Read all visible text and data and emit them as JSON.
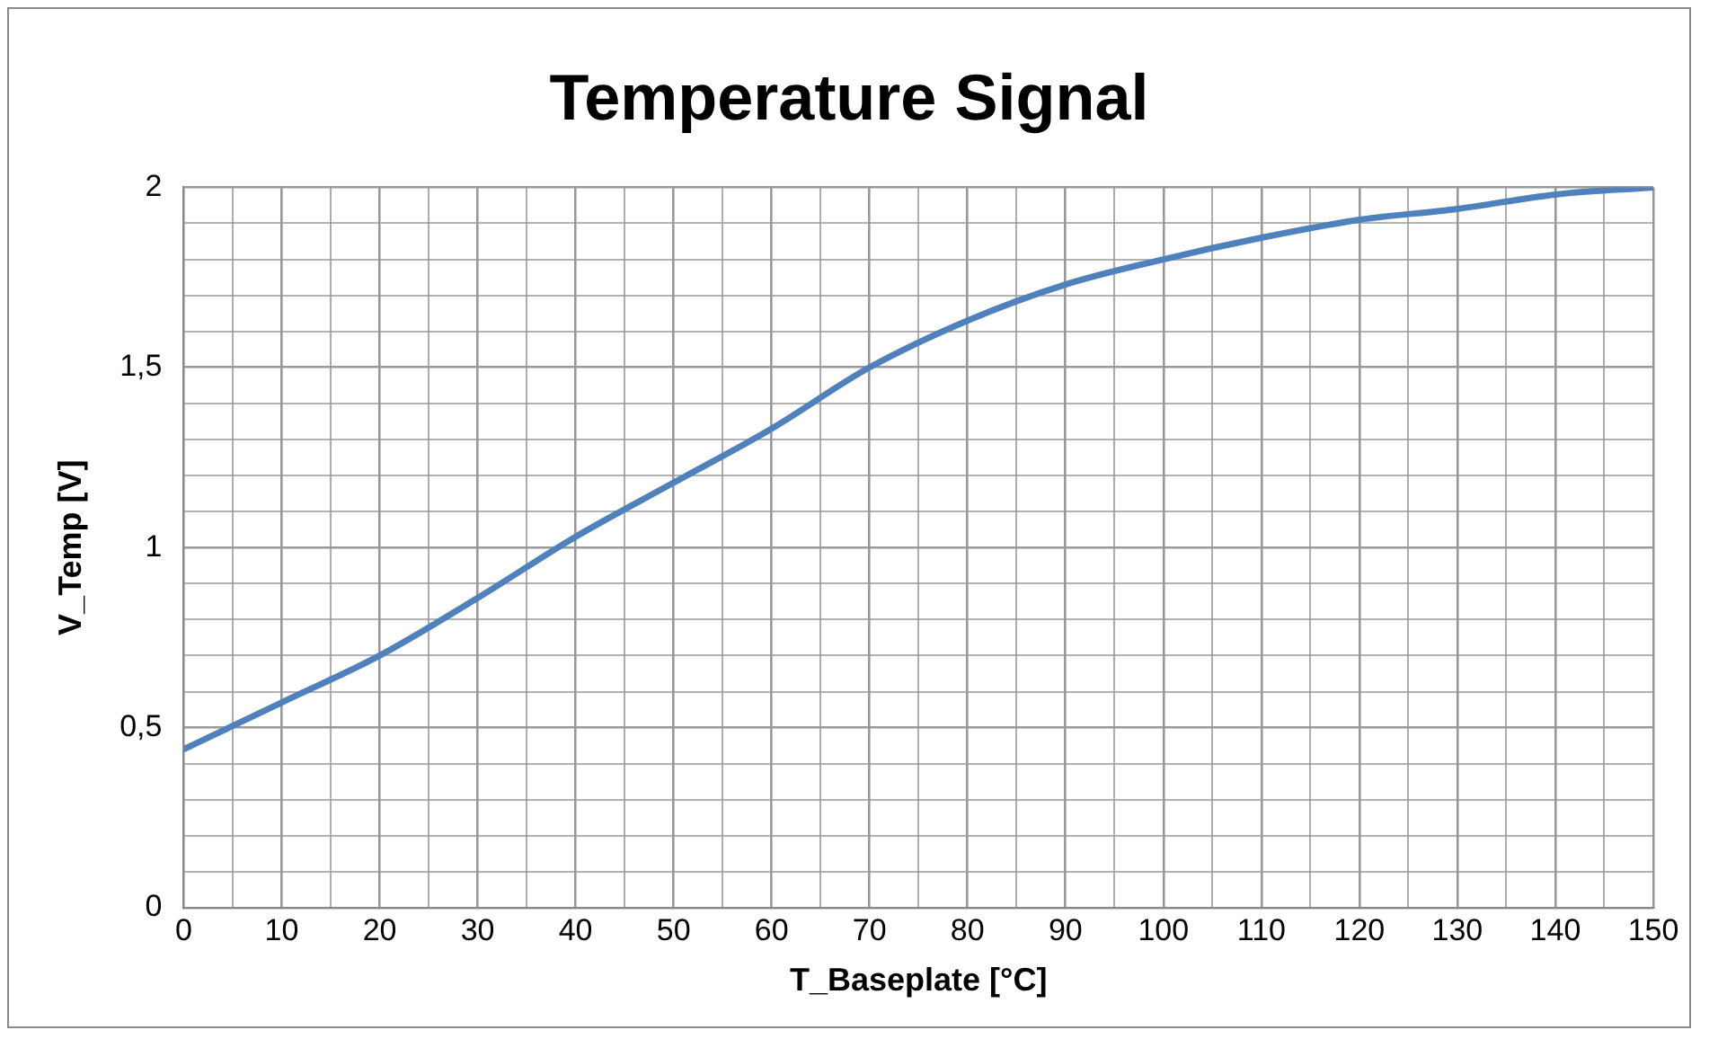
{
  "chart_data": {
    "type": "line",
    "title": "Temperature Signal",
    "xlabel": "T_Baseplate [°C]",
    "ylabel": "V_Temp [V]",
    "x": [
      0,
      10,
      20,
      30,
      40,
      50,
      60,
      70,
      80,
      90,
      100,
      110,
      120,
      130,
      140,
      150
    ],
    "series": [
      {
        "color": "#4f81bd",
        "values": [
          0.44,
          0.57,
          0.7,
          0.86,
          1.03,
          1.18,
          1.33,
          1.5,
          1.63,
          1.73,
          1.8,
          1.86,
          1.91,
          1.94,
          1.98,
          2.0
        ]
      }
    ],
    "xlim": [
      0,
      150
    ],
    "xticks": [
      0,
      {
        "value": 5,
        "label": null
      },
      10,
      {
        "value": 15,
        "label": null
      },
      20,
      {
        "value": 25,
        "label": null
      },
      30,
      {
        "value": 35,
        "label": null
      },
      40,
      {
        "value": 45,
        "label": null
      },
      50,
      {
        "value": 55,
        "label": null
      },
      60,
      {
        "value": 65,
        "label": null
      },
      70,
      {
        "value": 75,
        "label": null
      },
      80,
      {
        "value": 85,
        "label": null
      },
      90,
      {
        "value": 95,
        "label": null
      },
      100,
      {
        "value": 105,
        "label": null
      },
      110,
      {
        "value": 115,
        "label": null
      },
      120,
      {
        "value": 125,
        "label": null
      },
      130,
      {
        "value": 135,
        "label": null
      },
      140,
      {
        "value": 145,
        "label": null
      },
      150
    ],
    "ylim": [
      0,
      2
    ],
    "yticks": [
      0,
      {
        "value": 0.1,
        "label": null
      },
      {
        "value": 0.2,
        "label": null
      },
      {
        "value": 0.3,
        "label": null
      },
      {
        "value": 0.4,
        "label": null
      },
      {
        "value": 0.5,
        "label": "0,5"
      },
      {
        "value": 0.6,
        "label": null
      },
      {
        "value": 0.7,
        "label": null
      },
      {
        "value": 0.8,
        "label": null
      },
      {
        "value": 0.9,
        "label": null
      },
      1,
      {
        "value": 1.1,
        "label": null
      },
      {
        "value": 1.2,
        "label": null
      },
      {
        "value": 1.3,
        "label": null
      },
      {
        "value": 1.4,
        "label": null
      },
      {
        "value": 1.5,
        "label": "1,5"
      },
      {
        "value": 1.6,
        "label": null
      },
      {
        "value": 1.7,
        "label": null
      },
      {
        "value": 1.8,
        "label": null
      },
      {
        "value": 1.9,
        "label": null
      },
      2
    ],
    "grid": true,
    "legend": false,
    "marker": "none",
    "line_style": "solid"
  }
}
